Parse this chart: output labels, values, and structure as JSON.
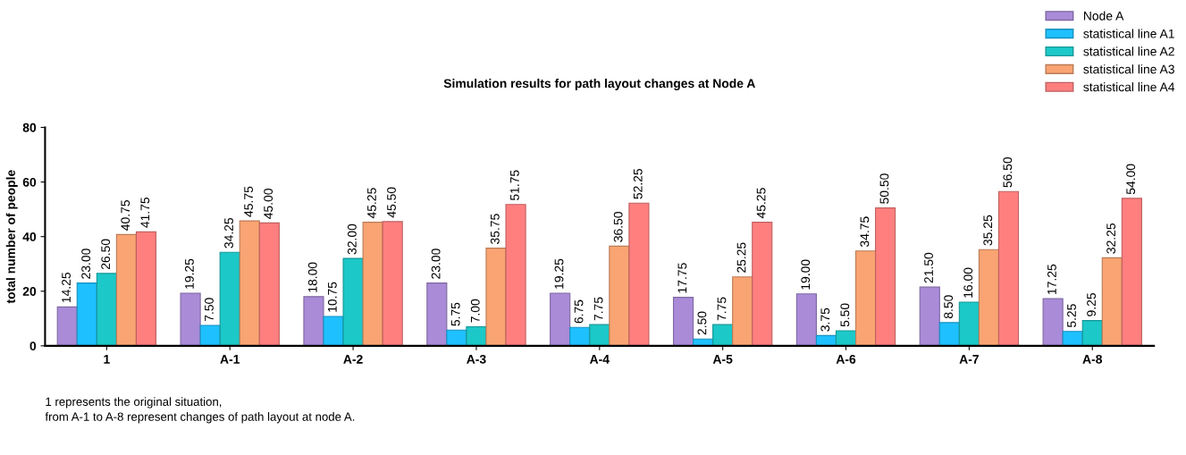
{
  "chart_data": {
    "type": "bar",
    "title": "Simulation results for path layout changes at Node A",
    "ylabel": "total number of people",
    "categories": [
      "1",
      "A-1",
      "A-2",
      "A-3",
      "A-4",
      "A-5",
      "A-6",
      "A-7",
      "A-8"
    ],
    "series": [
      {
        "name": "Node A",
        "color": "#a98bd8",
        "values": [
          14.25,
          19.25,
          18.0,
          23.0,
          19.25,
          17.75,
          19.0,
          21.5,
          17.25
        ],
        "value_labels": [
          "14.25",
          "19.25",
          "18.00",
          "23.00",
          "19.25",
          "17.75",
          "19.00",
          "21.50",
          "17.25"
        ]
      },
      {
        "name": "statistical line A1",
        "color": "#1ec0ff",
        "values": [
          23.0,
          7.5,
          10.75,
          5.75,
          6.75,
          2.5,
          3.75,
          8.5,
          5.25
        ],
        "value_labels": [
          "23.00",
          "7.50",
          "10.75",
          "5.75",
          "6.75",
          "2.50",
          "3.75",
          "8.50",
          "5.25"
        ]
      },
      {
        "name": "statistical line A2",
        "color": "#1cc8c8",
        "values": [
          26.5,
          34.25,
          32.0,
          7.0,
          7.75,
          7.75,
          5.5,
          16.0,
          9.25
        ],
        "value_labels": [
          "26.50",
          "34.25",
          "32.00",
          "7.00",
          "7.75",
          "7.75",
          "5.50",
          "16.00",
          "9.25"
        ]
      },
      {
        "name": "statistical line A3",
        "color": "#f9a472",
        "values": [
          40.75,
          45.75,
          45.25,
          35.75,
          36.5,
          25.25,
          34.75,
          35.25,
          32.25
        ],
        "value_labels": [
          "40.75",
          "45.75",
          "45.25",
          "35.75",
          "36.50",
          "25.25",
          "34.75",
          "35.25",
          "32.25"
        ]
      },
      {
        "name": "statistical line A4",
        "color": "#ff7f7f",
        "values": [
          41.75,
          45.0,
          45.5,
          51.75,
          52.25,
          45.25,
          50.5,
          56.5,
          54.0
        ],
        "value_labels": [
          "41.75",
          "45.00",
          "45.50",
          "51.75",
          "52.25",
          "45.25",
          "50.50",
          "56.50",
          "54.00"
        ]
      }
    ],
    "ylim": [
      0,
      80
    ],
    "yticks": [
      0,
      20,
      40,
      60,
      80
    ],
    "grid": false,
    "legend": "top right",
    "annotations": [
      "1 represents the original situation,",
      "from A-1 to A-8 represent changes of path layout at node A."
    ]
  }
}
